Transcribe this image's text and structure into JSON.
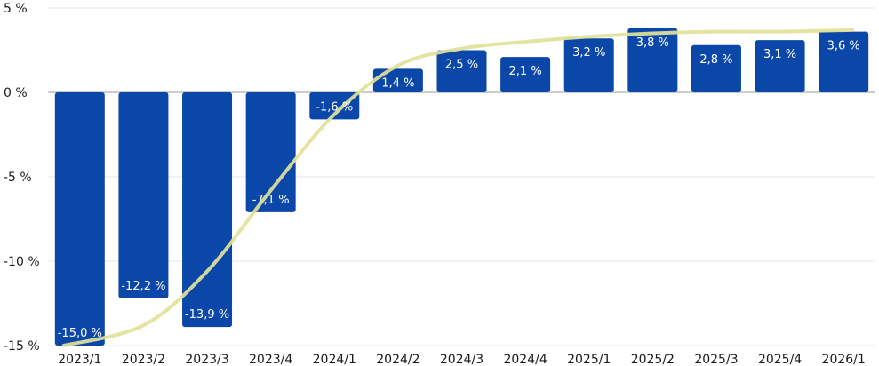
{
  "chart_data": {
    "type": "bar",
    "title": "",
    "xlabel": "",
    "ylabel": "",
    "categories": [
      "2023/1",
      "2023/2",
      "2023/3",
      "2023/4",
      "2024/1",
      "2024/2",
      "2024/3",
      "2024/4",
      "2025/1",
      "2025/2",
      "2025/3",
      "2025/4",
      "2026/1"
    ],
    "series": [
      {
        "type": "bar",
        "color": "#0a47a9",
        "values": [
          -15.0,
          -12.2,
          -13.9,
          -7.1,
          -1.6,
          1.4,
          2.5,
          2.1,
          3.2,
          3.8,
          2.8,
          3.1,
          3.6
        ],
        "labels": [
          "-15,0 %",
          "-12,2 %",
          "-13,9 %",
          "-7,1 %",
          "-1,6 %",
          "1,4 %",
          "2,5 %",
          "2,1 %",
          "3,2 %",
          "3,8 %",
          "2,8 %",
          "3,1 %",
          "3,6 %"
        ]
      },
      {
        "type": "line",
        "color": "#e2e29a",
        "values": [
          -15.0,
          -13.8,
          -10.6,
          -5.8,
          -1.3,
          1.6,
          2.6,
          3.0,
          3.3,
          3.5,
          3.6,
          3.6,
          3.7
        ]
      }
    ],
    "ylim": [
      -15,
      5
    ],
    "yticks": [
      5,
      0,
      -5,
      -10,
      -15
    ],
    "ytick_labels": [
      "5 %",
      "0 %",
      "-5 %",
      "-10 %",
      "-15 %"
    ],
    "grid": true,
    "legend": "none"
  }
}
